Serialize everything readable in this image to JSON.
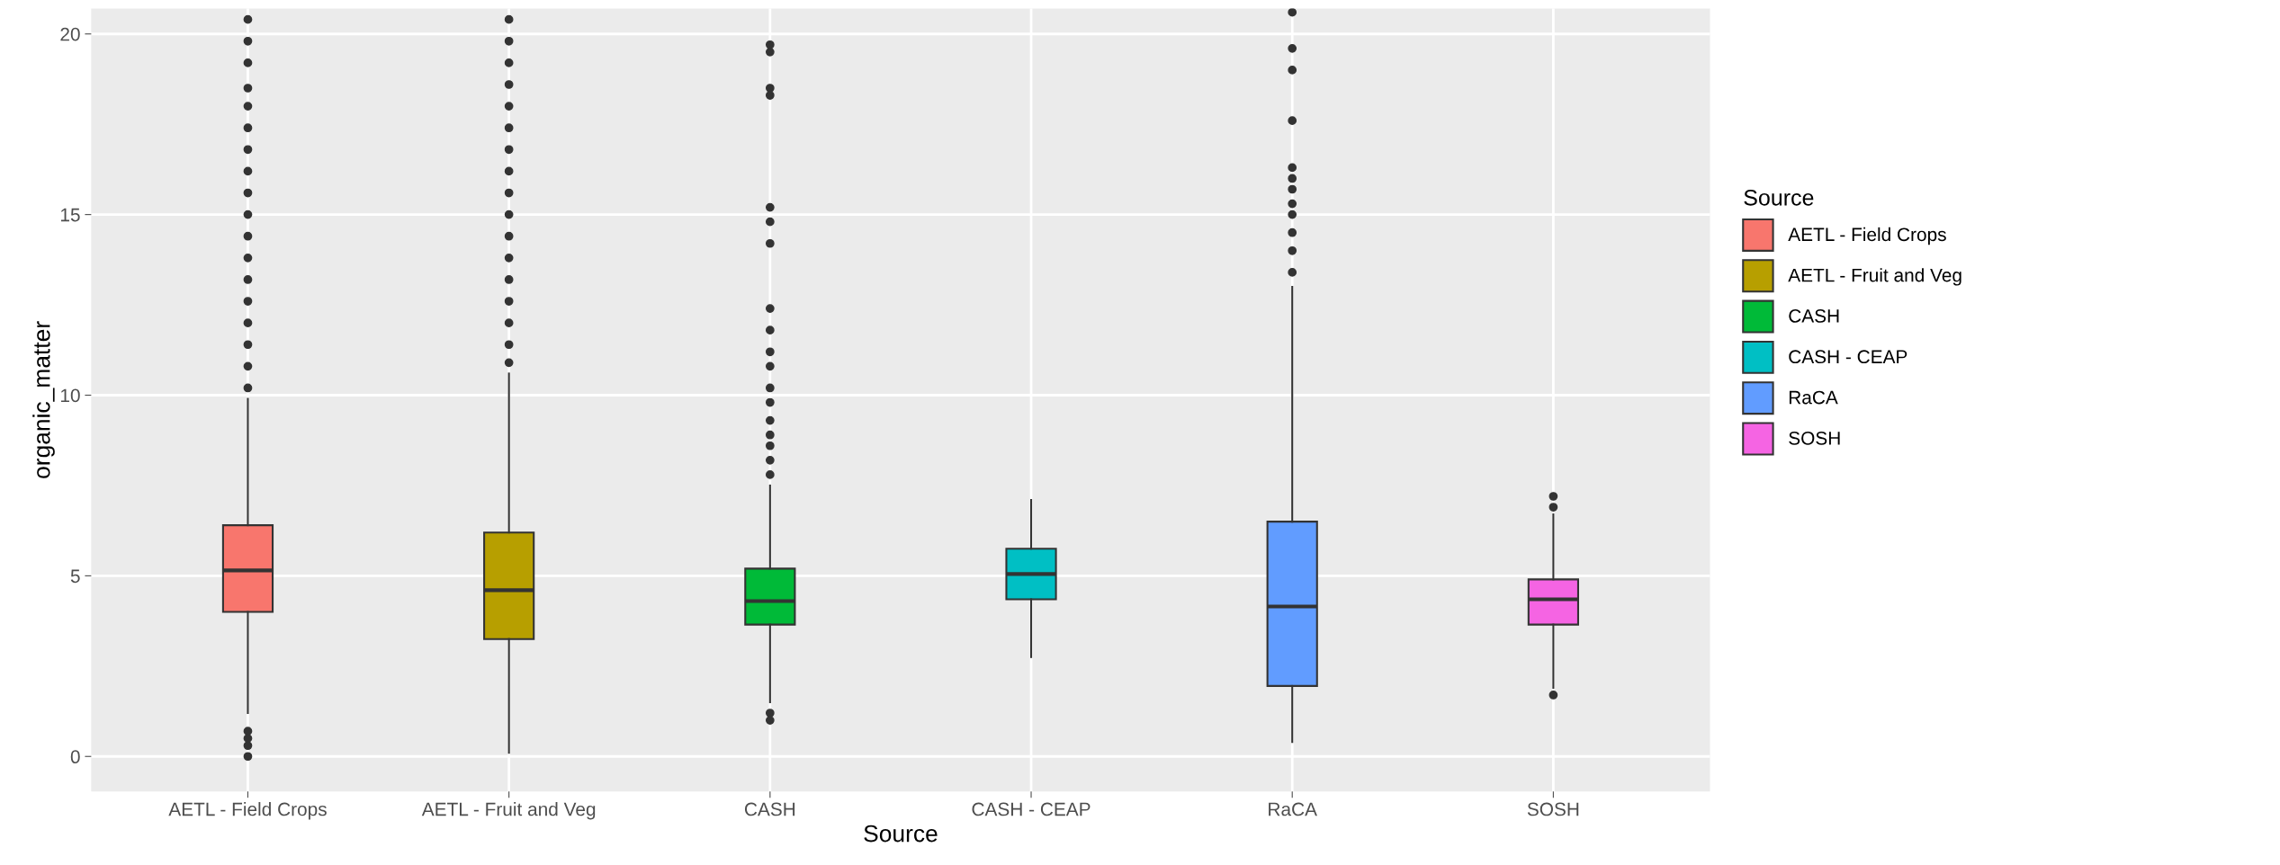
{
  "chart_data": {
    "type": "box",
    "xlabel": "Source",
    "ylabel": "organic_matter",
    "legend_title": "Source",
    "categories": [
      "AETL - Field Crops",
      "AETL - Fruit and Veg",
      "CASH",
      "CASH - CEAP",
      "RaCA",
      "SOSH"
    ],
    "series": [
      {
        "name": "AETL - Field Crops",
        "color": "#f8766d",
        "boxes": [
          {
            "low": 1.2,
            "q1": 4.0,
            "median": 5.15,
            "q3": 6.4,
            "high": 9.9,
            "outliers": [
              0,
              0.3,
              0.5,
              0.7,
              10.2,
              10.8,
              11.4,
              12,
              12.6,
              13.2,
              13.8,
              14.4,
              15,
              15.6,
              16.2,
              16.8,
              17.4,
              18,
              18.5,
              19.2,
              19.8,
              20.4
            ]
          },
          null,
          null,
          null,
          null,
          null
        ]
      },
      {
        "name": "AETL - Fruit and Veg",
        "color": "#b79f00",
        "boxes": [
          null,
          {
            "low": 0.1,
            "q1": 3.25,
            "median": 4.6,
            "q3": 6.2,
            "high": 10.6,
            "outliers": [
              10.9,
              11.4,
              12,
              12.6,
              13.2,
              13.8,
              14.4,
              15,
              15.6,
              16.2,
              16.8,
              17.4,
              18,
              18.6,
              19.2,
              19.8,
              20.4
            ]
          },
          null,
          null,
          null,
          null
        ]
      },
      {
        "name": "CASH",
        "color": "#00ba38",
        "boxes": [
          null,
          null,
          {
            "low": 1.5,
            "q1": 3.65,
            "median": 4.3,
            "q3": 5.2,
            "high": 7.5,
            "outliers": [
              1.0,
              1.2,
              7.8,
              8.2,
              8.6,
              8.9,
              9.3,
              9.8,
              10.2,
              10.8,
              11.2,
              11.8,
              12.4,
              14.2,
              14.8,
              15.2,
              18.3,
              18.5,
              19.5,
              19.7
            ]
          },
          null,
          null,
          null
        ]
      },
      {
        "name": "CASH - CEAP",
        "color": "#00bfc4",
        "boxes": [
          null,
          null,
          null,
          {
            "low": 2.75,
            "q1": 4.35,
            "median": 5.05,
            "q3": 5.75,
            "high": 7.1
          },
          null,
          null
        ]
      },
      {
        "name": "RaCA",
        "color": "#619cff",
        "boxes": [
          null,
          null,
          null,
          null,
          {
            "low": 0.4,
            "q1": 1.95,
            "median": 4.15,
            "q3": 6.5,
            "high": 13.0,
            "outliers": [
              13.4,
              14,
              14.5,
              15,
              15.3,
              15.7,
              16,
              16.3,
              17.6,
              19,
              19.6,
              20.6
            ]
          },
          null
        ]
      },
      {
        "name": "SOSH",
        "color": "#f564e3",
        "boxes": [
          null,
          null,
          null,
          null,
          null,
          {
            "low": 1.9,
            "q1": 3.65,
            "median": 4.35,
            "q3": 4.9,
            "high": 6.7,
            "outliers": [
              1.7,
              6.9,
              7.2
            ]
          }
        ]
      }
    ],
    "ylim": [
      -0.97,
      20.7
    ],
    "yticks": [
      0,
      5,
      10,
      15,
      20
    ],
    "grid": true,
    "legend": "right"
  }
}
